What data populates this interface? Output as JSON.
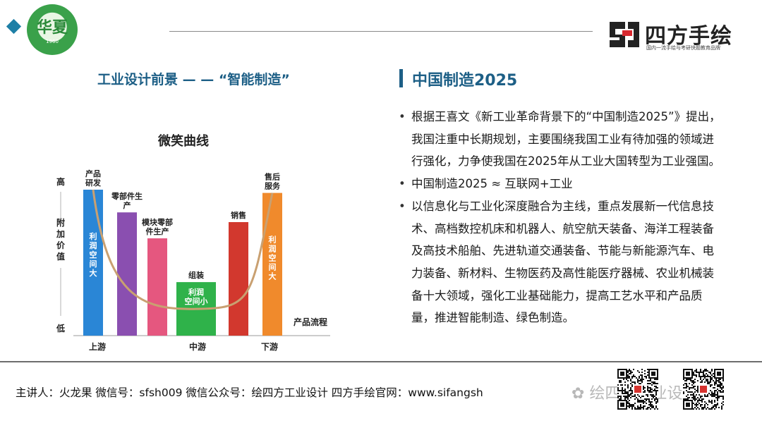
{
  "header": {
    "logo_glyph": "华夏",
    "logo_year": "1960",
    "brand_name": "四方手绘",
    "brand_tagline": "国内一流手绘与考研快题教育品牌"
  },
  "left": {
    "title": "工业设计前景 — — “智能制造”"
  },
  "chart_data": {
    "type": "bar",
    "title": "微笑曲线",
    "ylabel_top": "高",
    "ylabel_mid": "附加价值",
    "ylabel_bottom": "低",
    "xlabel": "产品流程",
    "stage_labels": [
      "上游",
      "中游",
      "下游"
    ],
    "categories": [
      "产品研发",
      "零部件生产",
      "模块零部件生产",
      "组装",
      "销售",
      "售后服务"
    ],
    "values": [
      90,
      76,
      60,
      33,
      70,
      88
    ],
    "ylim": [
      0,
      100
    ],
    "colors": [
      "#2a86d6",
      "#8a4fb0",
      "#e5577f",
      "#2fb24a",
      "#d2382e",
      "#f08a2c"
    ],
    "bar_inner_labels": [
      "利润空间大",
      "",
      "",
      "利润空间小",
      "",
      "利润空间大"
    ],
    "curve_color": "#c9a071"
  },
  "right": {
    "title": "中国制造2025",
    "bullets": [
      "根据王喜文《新工业革命背景下的“中国制造2025”》提出，我国注重中长期规划，主要围绕我国工业有待加强的领域进行强化，力争使我国在2025年从工业大国转型为工业强国。",
      "中国制造2025 ≈ 互联网+工业",
      "以信息化与工业化深度融合为主线，重点发展新一代信息技术、高档数控机床和机器人、航空航天装备、海洋工程装备及高技术船舶、先进轨道交通装备、节能与新能源汽车、电力装备、新材料、生物医药及高性能医疗器械、农业机械装备十大领域，强化工业基础能力，提高工艺水平和产品质量，推进智能制造、绿色制造。"
    ]
  },
  "footer": {
    "text": "主讲人：火龙果   微信号：sfsh009   微信公众号：绘四方工业设计   四方手绘官网：www.sifangsh",
    "watermark": "绘四方工业设计"
  }
}
